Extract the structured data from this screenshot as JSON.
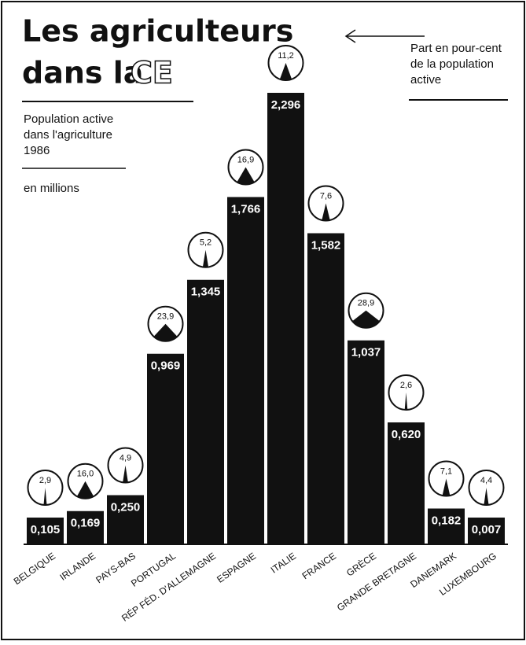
{
  "chart_data": {
    "type": "bar",
    "title_lines": [
      "Les agriculteurs",
      "dans la"
    ],
    "title_highlight": "CE",
    "subtitle_lines": [
      "Population active",
      "dans l'agriculture",
      "1986"
    ],
    "unit": "en millions",
    "annotation_lines": [
      "Part en pour-cent",
      "de la population",
      "active"
    ],
    "categories": [
      "BELGIQUE",
      "IRLANDE",
      "PAYS-BAS",
      "PORTUGAL",
      "RÉP FÉD. D'ALLEMAGNE",
      "ESPAGNE",
      "ITALIE",
      "FRANCE",
      "GRÈCE",
      "GRANDE BRETAGNE",
      "DANEMARK",
      "LUXEMBOURG"
    ],
    "values": [
      0.105,
      0.169,
      0.25,
      0.969,
      1.345,
      1.766,
      2.296,
      1.582,
      1.037,
      0.62,
      0.182,
      0.007
    ],
    "value_labels": [
      "0,105",
      "0,169",
      "0,250",
      "0,969",
      "1,345",
      "1,766",
      "2,296",
      "1,582",
      "1,037",
      "0,620",
      "0,182",
      "0,007"
    ],
    "share_values": [
      2.9,
      16.0,
      4.9,
      23.9,
      5.2,
      16.9,
      11.2,
      7.6,
      28.9,
      2.6,
      7.1,
      4.4
    ],
    "share_labels": [
      "2,9",
      "16,0",
      "4,9",
      "23,9",
      "5,2",
      "16,9",
      "11,2",
      "7,6",
      "28,9",
      "2,6",
      "7,1",
      "4,4"
    ],
    "color": "#111111"
  }
}
